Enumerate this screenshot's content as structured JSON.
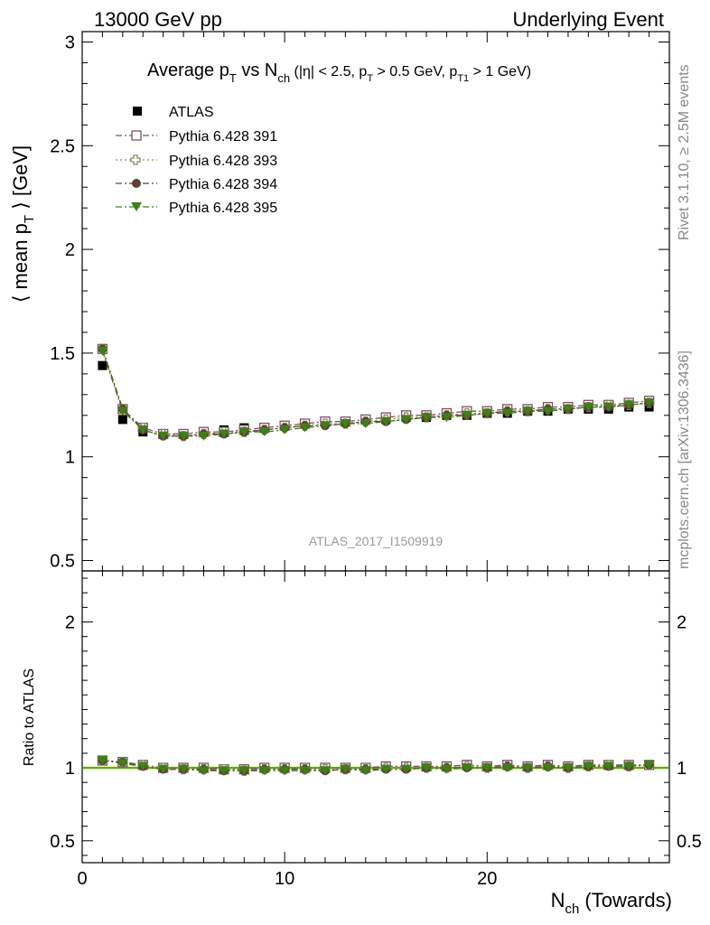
{
  "header": {
    "left": "13000 GeV pp",
    "right": "Underlying Event"
  },
  "side_labels": {
    "rivet": "Rivet 3.1.10, ≥ 2.5M events",
    "mcplots": "mcplots.cern.ch [arXiv:1306.3436]"
  },
  "watermark": "ATLAS_2017_I1509919",
  "colors": {
    "atlas": "#000000",
    "p391": "#7f4f66",
    "p393": "#8a8a5c",
    "p394": "#5c4030",
    "p395": "#3f7f1a",
    "band": "#ccff66",
    "ratio_line": "#3f7f1a"
  },
  "chart_data": [
    {
      "type": "scatter",
      "title_parts": {
        "main": "Average p",
        "main_sub": "T",
        "vs": " vs N",
        "vs_sub": "ch",
        "cuts1": " (|η| < 2.5, p",
        "cuts1_sub": "T",
        "cuts2": " > 0.5 GeV, p",
        "cuts2_sub": "T1",
        "cuts3": " > 1 GeV)"
      },
      "ylabel_parts": {
        "a": "⟨ mean p",
        "sub": "T",
        "b": " ⟩ [GeV]"
      },
      "xlim": [
        0,
        29
      ],
      "ylim": [
        0.45,
        3.05
      ],
      "y_ticks": [
        0.5,
        1,
        1.5,
        2,
        2.5,
        3
      ],
      "y_tick_labels": [
        "0.5",
        "1",
        "1.5",
        "2",
        "2.5",
        "3"
      ],
      "legend_position": "top-left",
      "x": [
        1,
        2,
        3,
        4,
        5,
        6,
        7,
        8,
        9,
        10,
        11,
        12,
        13,
        14,
        15,
        16,
        17,
        18,
        19,
        20,
        21,
        22,
        23,
        24,
        25,
        26,
        27,
        28
      ],
      "series": [
        {
          "name": "ATLAS",
          "marker": "filled-square",
          "color_key": "atlas",
          "values": [
            1.44,
            1.18,
            1.12,
            1.11,
            1.11,
            1.12,
            1.13,
            1.14,
            1.14,
            1.15,
            1.16,
            1.17,
            1.17,
            1.18,
            1.18,
            1.19,
            1.19,
            1.2,
            1.2,
            1.21,
            1.21,
            1.22,
            1.22,
            1.23,
            1.23,
            1.23,
            1.24,
            1.24
          ]
        },
        {
          "name": "Pythia 6.428 391",
          "marker": "open-square",
          "color_key": "p391",
          "values": [
            1.52,
            1.23,
            1.14,
            1.11,
            1.11,
            1.12,
            1.12,
            1.13,
            1.14,
            1.15,
            1.16,
            1.17,
            1.17,
            1.18,
            1.19,
            1.2,
            1.2,
            1.21,
            1.22,
            1.22,
            1.23,
            1.23,
            1.24,
            1.24,
            1.25,
            1.25,
            1.26,
            1.27
          ]
        },
        {
          "name": "Pythia 6.428 393",
          "marker": "open-cross",
          "color_key": "p393",
          "values": [
            1.52,
            1.23,
            1.14,
            1.11,
            1.1,
            1.11,
            1.12,
            1.12,
            1.13,
            1.14,
            1.15,
            1.16,
            1.16,
            1.17,
            1.18,
            1.19,
            1.19,
            1.2,
            1.21,
            1.21,
            1.22,
            1.22,
            1.23,
            1.23,
            1.24,
            1.25,
            1.25,
            1.26
          ]
        },
        {
          "name": "Pythia 6.428 394",
          "marker": "filled-circle",
          "color_key": "p394",
          "values": [
            1.52,
            1.23,
            1.13,
            1.1,
            1.1,
            1.11,
            1.11,
            1.12,
            1.13,
            1.14,
            1.15,
            1.15,
            1.16,
            1.17,
            1.17,
            1.18,
            1.19,
            1.2,
            1.2,
            1.21,
            1.22,
            1.22,
            1.23,
            1.23,
            1.24,
            1.24,
            1.25,
            1.26
          ]
        },
        {
          "name": "Pythia 6.428 395",
          "marker": "filled-triangle-down",
          "color_key": "p395",
          "values": [
            1.51,
            1.22,
            1.13,
            1.1,
            1.1,
            1.1,
            1.11,
            1.12,
            1.12,
            1.13,
            1.14,
            1.15,
            1.16,
            1.16,
            1.17,
            1.18,
            1.19,
            1.19,
            1.2,
            1.21,
            1.21,
            1.22,
            1.22,
            1.23,
            1.24,
            1.24,
            1.25,
            1.26
          ]
        }
      ]
    },
    {
      "type": "scatter",
      "ylabel": "Ratio to ATLAS",
      "xlabel_parts": {
        "a": "N",
        "sub": "ch",
        "b": " (Towards)"
      },
      "xlim": [
        0,
        29
      ],
      "ylim": [
        0.35,
        2.35
      ],
      "x_ticks": [
        0,
        10,
        20
      ],
      "x_tick_labels": [
        "0",
        "10",
        "20"
      ],
      "y_ticks": [
        0.5,
        1,
        2
      ],
      "y_tick_labels": [
        "0.5",
        "1",
        "2"
      ],
      "reference_line": 1.0,
      "x": [
        1,
        2,
        3,
        4,
        5,
        6,
        7,
        8,
        9,
        10,
        11,
        12,
        13,
        14,
        15,
        16,
        17,
        18,
        19,
        20,
        21,
        22,
        23,
        24,
        25,
        26,
        27,
        28
      ],
      "series": [
        {
          "name": "Pythia 6.428 391",
          "marker": "open-square",
          "color_key": "p391",
          "values": [
            1.05,
            1.04,
            1.02,
            1.0,
            1.0,
            1.0,
            0.99,
            0.99,
            1.0,
            1.0,
            1.0,
            1.0,
            1.0,
            1.0,
            1.01,
            1.01,
            1.01,
            1.01,
            1.02,
            1.01,
            1.02,
            1.01,
            1.02,
            1.01,
            1.02,
            1.02,
            1.02,
            1.02
          ]
        },
        {
          "name": "Pythia 6.428 393",
          "marker": "open-cross",
          "color_key": "p393",
          "values": [
            1.05,
            1.04,
            1.02,
            1.0,
            0.99,
            0.99,
            0.99,
            0.98,
            0.99,
            0.99,
            0.99,
            0.99,
            0.99,
            0.99,
            1.0,
            1.0,
            1.0,
            1.0,
            1.01,
            1.0,
            1.01,
            1.0,
            1.01,
            1.0,
            1.01,
            1.02,
            1.01,
            1.02
          ]
        },
        {
          "name": "Pythia 6.428 394",
          "marker": "filled-circle",
          "color_key": "p394",
          "values": [
            1.05,
            1.04,
            1.01,
            0.99,
            0.99,
            0.99,
            0.98,
            0.98,
            0.99,
            0.99,
            0.99,
            0.98,
            0.99,
            0.99,
            0.99,
            0.99,
            1.0,
            1.0,
            1.0,
            1.0,
            1.01,
            1.0,
            1.01,
            1.0,
            1.01,
            1.01,
            1.01,
            1.02
          ]
        },
        {
          "name": "Pythia 6.428 395",
          "marker": "filled-triangle-down",
          "color_key": "p395",
          "values": [
            1.05,
            1.03,
            1.01,
            0.99,
            0.99,
            0.98,
            0.98,
            0.98,
            0.98,
            0.98,
            0.98,
            0.98,
            0.99,
            0.98,
            0.99,
            0.99,
            1.0,
            0.99,
            1.0,
            1.0,
            1.0,
            1.0,
            1.0,
            1.0,
            1.01,
            1.01,
            1.01,
            1.02
          ]
        }
      ]
    }
  ]
}
